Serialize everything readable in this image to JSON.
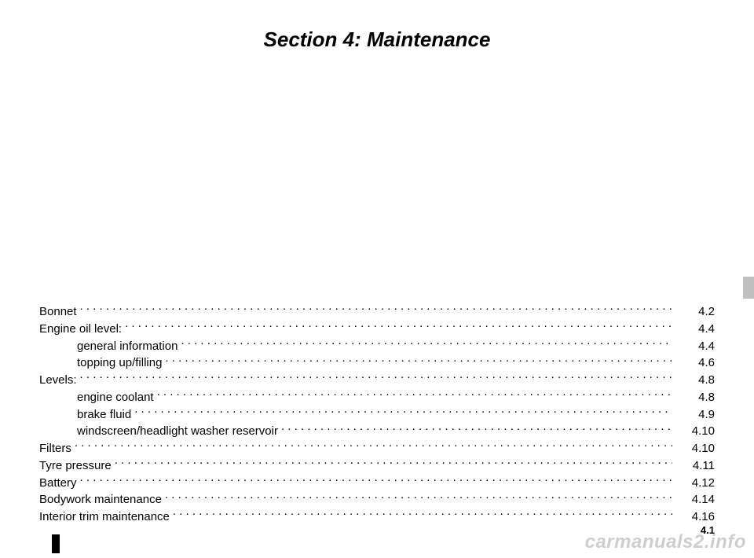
{
  "title": "Section 4: Maintenance",
  "pageNumber": "4.1",
  "watermark": "carmanuals2.info",
  "colors": {
    "background": "#ffffff",
    "text": "#000000",
    "tab": "#bfbfbf",
    "watermark": "#c9c9c9"
  },
  "typography": {
    "title_fontsize": 26,
    "title_style": "bold italic",
    "body_fontsize": 15,
    "footer_fontsize": 13
  },
  "toc": [
    {
      "label": "Bonnet",
      "page": "4.2",
      "indent": 0
    },
    {
      "label": "Engine oil level:",
      "page": "4.4",
      "indent": 0
    },
    {
      "label": "general information",
      "page": "4.4",
      "indent": 1
    },
    {
      "label": "topping up/filling",
      "page": "4.6",
      "indent": 1
    },
    {
      "label": "Levels:",
      "page": "4.8",
      "indent": 0
    },
    {
      "label": "engine coolant",
      "page": "4.8",
      "indent": 1
    },
    {
      "label": "brake fluid",
      "page": "4.9",
      "indent": 1
    },
    {
      "label": "windscreen/headlight washer reservoir",
      "page": "4.10",
      "indent": 1
    },
    {
      "label": "Filters",
      "page": "4.10",
      "indent": 0
    },
    {
      "label": "Tyre pressure",
      "page": "4.11",
      "indent": 0
    },
    {
      "label": "Battery",
      "page": "4.12",
      "indent": 0
    },
    {
      "label": "Bodywork maintenance",
      "page": "4.14",
      "indent": 0
    },
    {
      "label": "Interior trim maintenance",
      "page": "4.16",
      "indent": 0
    }
  ]
}
